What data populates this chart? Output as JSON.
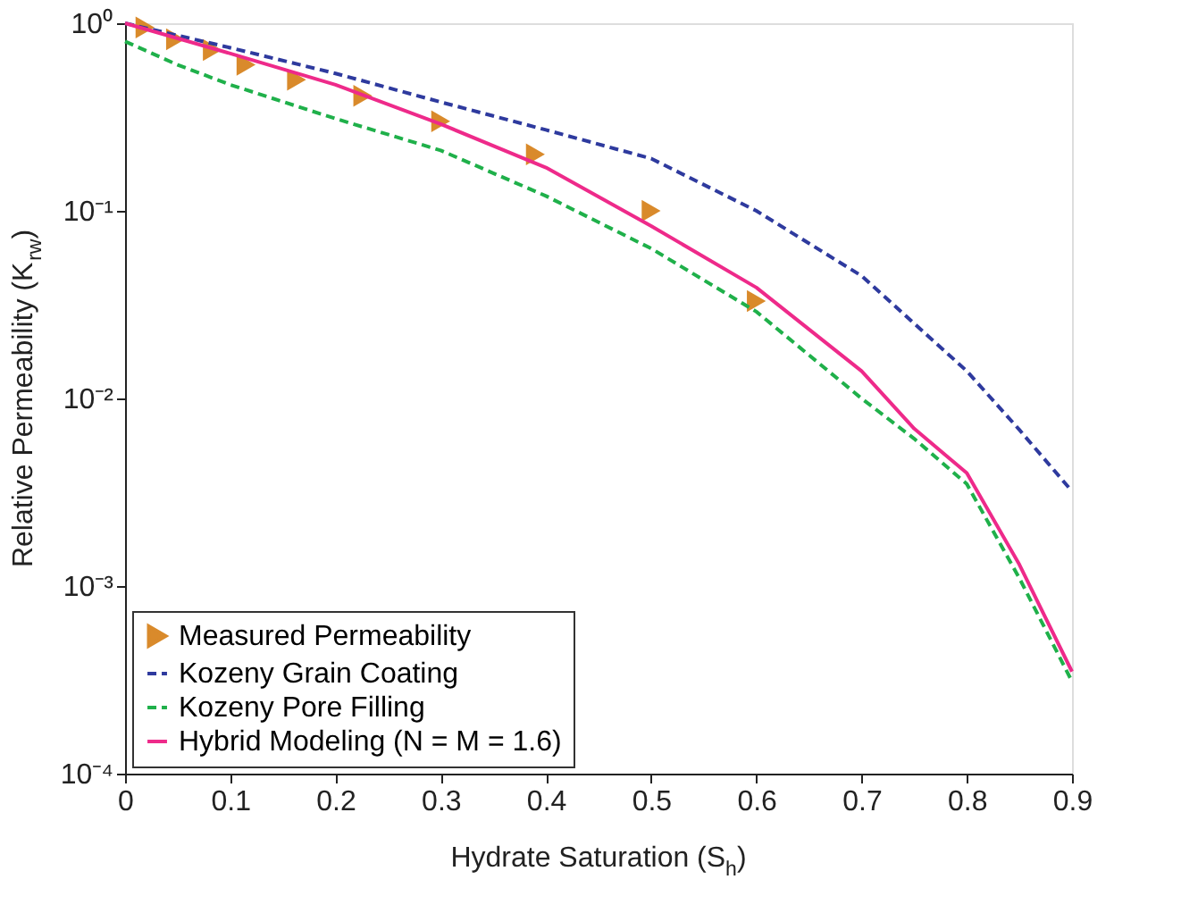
{
  "chart_data": {
    "type": "line",
    "xlabel": "Hydrate Saturation (S$_{h}$)",
    "ylabel": "Relative Permeability (K$_{rw}$)",
    "log": "y",
    "xlim": [
      0,
      0.9
    ],
    "xticks": [
      0,
      0.1,
      0.2,
      0.3,
      0.4,
      0.5,
      0.6,
      0.7,
      0.8,
      0.9
    ],
    "ylim": [
      0.0001,
      1
    ],
    "yticks": [
      {
        "value": 0.0001,
        "label": "10⁻⁴"
      },
      {
        "value": 0.001,
        "label": "10⁻³"
      },
      {
        "value": 0.01,
        "label": "10⁻²"
      },
      {
        "value": 0.1,
        "label": "10⁻¹"
      },
      {
        "value": 1,
        "label": "10⁰"
      }
    ],
    "grid": false,
    "legend": "bottom left",
    "series": [
      {
        "name": "Measured Permeability",
        "type": "scatter",
        "marker": "triangle",
        "color": "#d98a2b",
        "x": [
          0.019,
          0.048,
          0.083,
          0.115,
          0.163,
          0.226,
          0.3,
          0.39,
          0.5,
          0.6
        ],
        "values": [
          0.95,
          0.82,
          0.72,
          0.6,
          0.5,
          0.41,
          0.3,
          0.2,
          0.1,
          0.033
        ]
      },
      {
        "name": "Kozeny Grain Coating",
        "line_style": "dashed",
        "color": "#2e3a9e",
        "x": [
          0,
          0.1,
          0.2,
          0.3,
          0.4,
          0.5,
          0.6,
          0.7,
          0.8,
          0.85,
          0.9
        ],
        "values": [
          1.0,
          0.74,
          0.54,
          0.38,
          0.27,
          0.19,
          0.1,
          0.045,
          0.014,
          0.0068,
          0.0032
        ]
      },
      {
        "name": "Kozeny Pore Filling",
        "line_style": "dashed",
        "color": "#1fb04a",
        "x": [
          0,
          0.05,
          0.1,
          0.2,
          0.3,
          0.4,
          0.5,
          0.6,
          0.7,
          0.75,
          0.8,
          0.85,
          0.9
        ],
        "values": [
          0.8,
          0.6,
          0.47,
          0.31,
          0.21,
          0.12,
          0.063,
          0.029,
          0.01,
          0.0061,
          0.0035,
          0.0011,
          0.00031
        ]
      },
      {
        "name": "Hybrid Modeling (N = M = 1.6)",
        "line_style": "solid",
        "color": "#ee2a8a",
        "x": [
          0,
          0.1,
          0.2,
          0.3,
          0.4,
          0.5,
          0.6,
          0.7,
          0.75,
          0.8,
          0.85,
          0.9
        ],
        "values": [
          1.0,
          0.69,
          0.47,
          0.29,
          0.17,
          0.083,
          0.039,
          0.014,
          0.0069,
          0.004,
          0.0013,
          0.00035
        ]
      }
    ]
  }
}
